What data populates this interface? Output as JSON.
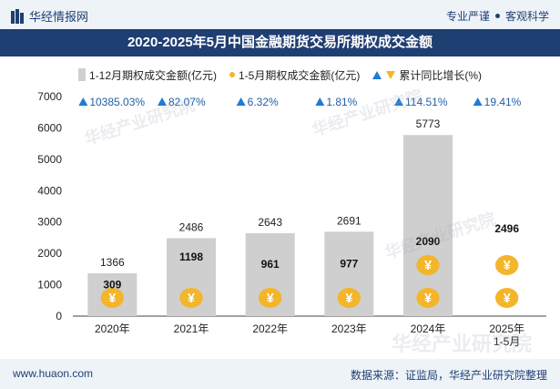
{
  "header": {
    "logo_text": "华经情报网",
    "tagline_left": "专业严谨",
    "tagline_right": "客观科学"
  },
  "colors": {
    "brand": "#1f3f73",
    "bar_gray": "#cfcfcf",
    "coin_gold": "#f3b52a",
    "arrow_up": "#1f7bd4"
  },
  "chart_data": {
    "type": "bar",
    "title": "2020-2025年5月中国金融期货交易所期权成交金额",
    "categories": [
      "2020年",
      "2021年",
      "2022年",
      "2023年",
      "2024年",
      "2025年\n1-5月"
    ],
    "series": [
      {
        "name": "1-12月期权成交金额(亿元)",
        "values": [
          1366,
          2486,
          2643,
          2691,
          5773,
          null
        ]
      },
      {
        "name": "1-5月期权成交金额(亿元)",
        "values": [
          309,
          1198,
          961,
          977,
          2090,
          2496
        ]
      },
      {
        "name": "累计同比增长(%)",
        "values": [
          "10385.03%",
          "82.07%",
          "6.32%",
          "1.81%",
          "114.51%",
          "19.41%"
        ]
      }
    ],
    "ylim": [
      0,
      7000
    ],
    "yticks": [
      0,
      1000,
      2000,
      3000,
      4000,
      5000,
      6000,
      7000
    ],
    "grid": false,
    "legend": "top"
  },
  "footer": {
    "website": "www.huaon.com",
    "source": "数据来源：证监局，华经产业研究院整理"
  },
  "watermark_text": "华经产业研究院"
}
